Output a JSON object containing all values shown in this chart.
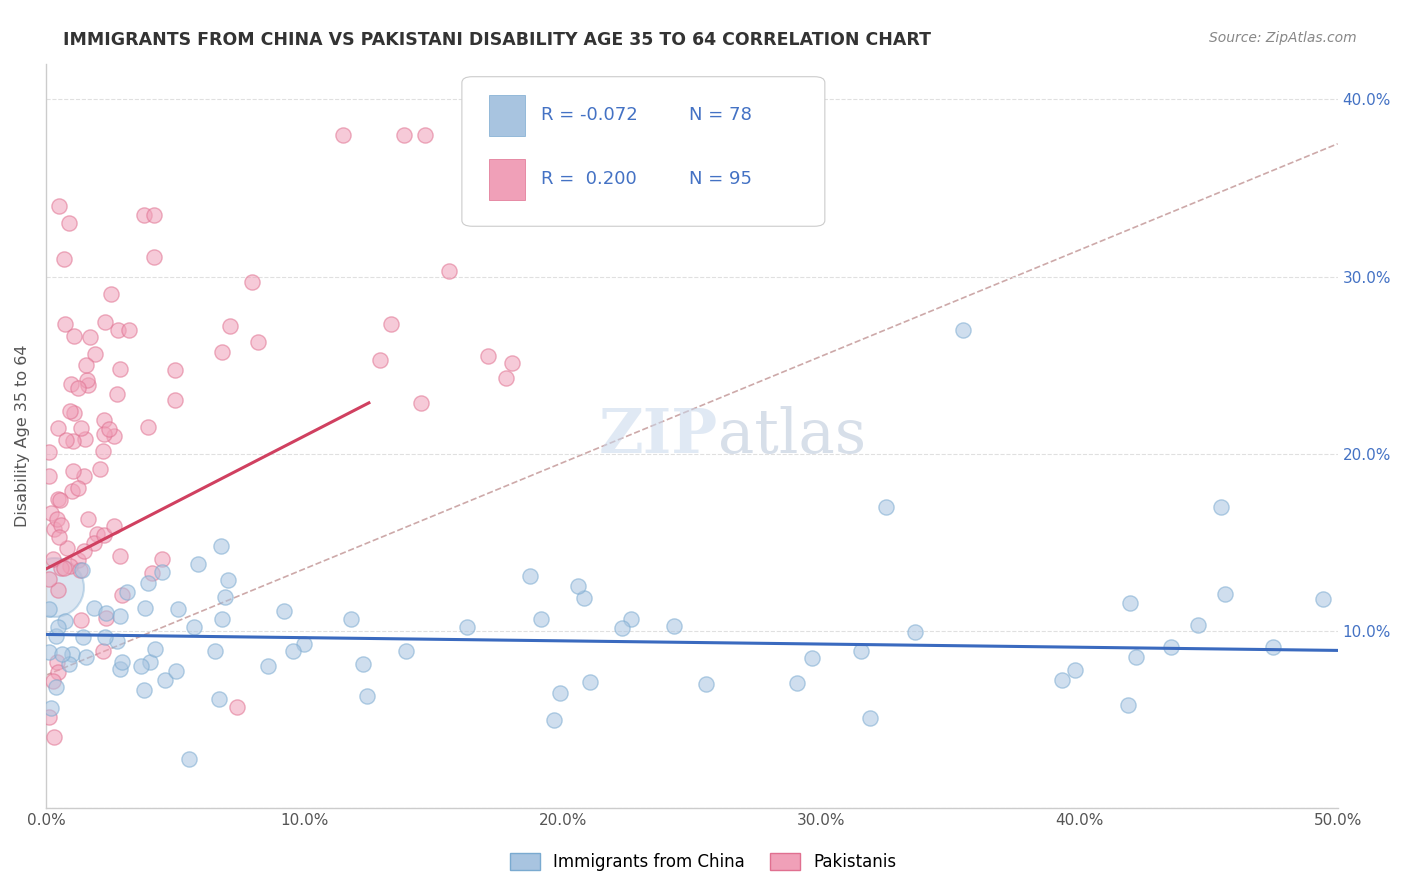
{
  "title": "IMMIGRANTS FROM CHINA VS PAKISTANI DISABILITY AGE 35 TO 64 CORRELATION CHART",
  "source": "Source: ZipAtlas.com",
  "ylabel": "Disability Age 35 to 64",
  "xlim": [
    0.0,
    0.5
  ],
  "ylim": [
    0.0,
    0.42
  ],
  "xticks": [
    0.0,
    0.1,
    0.2,
    0.3,
    0.4,
    0.5
  ],
  "xticklabels": [
    "0.0%",
    "10.0%",
    "20.0%",
    "30.0%",
    "40.0%",
    "50.0%"
  ],
  "yticks": [
    0.0,
    0.1,
    0.2,
    0.3,
    0.4
  ],
  "yticklabels_left": [
    "",
    "",
    "",
    "",
    ""
  ],
  "yticklabels_right": [
    "",
    "10.0%",
    "20.0%",
    "30.0%",
    "40.0%"
  ],
  "china_color": "#a8c4e0",
  "pakistan_color": "#f0a0b8",
  "china_edge_color": "#7aaad0",
  "pakistan_edge_color": "#e07090",
  "china_line_color": "#3a6abf",
  "pakistan_line_color": "#d04060",
  "trend_dashed_color": "#c8a0a0",
  "watermark_color": "#c8d8e8",
  "legend_text_color": "#4472c4",
  "title_color": "#333333",
  "source_color": "#888888",
  "ylabel_color": "#555555",
  "tick_color": "#555555",
  "grid_color": "#e0e0e0",
  "bottom_spine_color": "#cccccc"
}
